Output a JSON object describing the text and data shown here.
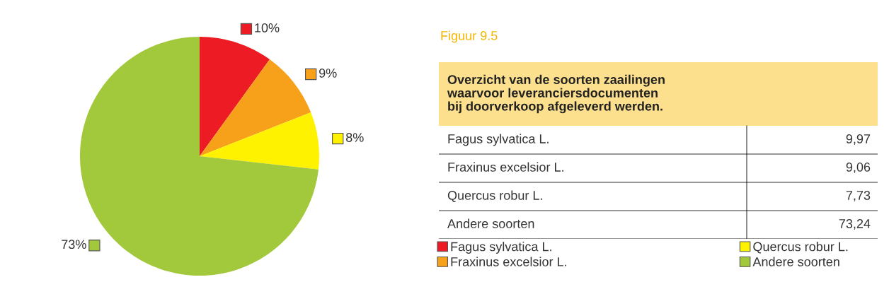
{
  "chart_data": {
    "type": "pie",
    "title": "Figuur 9.5",
    "subtitle": "Overzicht van de soorten zaailingen\nwaarvoor leveranciersdocumenten\nbij doorverkoop afgeleverd werden.",
    "categories": [
      "Fagus sylvatica L.",
      "Fraxinus excelsior L.",
      "Quercus robur L.",
      "Andere soorten"
    ],
    "values": [
      9.97,
      9.06,
      7.73,
      73.24
    ],
    "colors": [
      "#ed1c24",
      "#f7a11a",
      "#fff200",
      "#a2c83b"
    ],
    "value_labels": [
      "10%",
      "9%",
      "8%",
      "73%"
    ],
    "annotations": [
      "9,97",
      "9,06",
      "7,73",
      "73,24"
    ],
    "legend": "bottom"
  }
}
